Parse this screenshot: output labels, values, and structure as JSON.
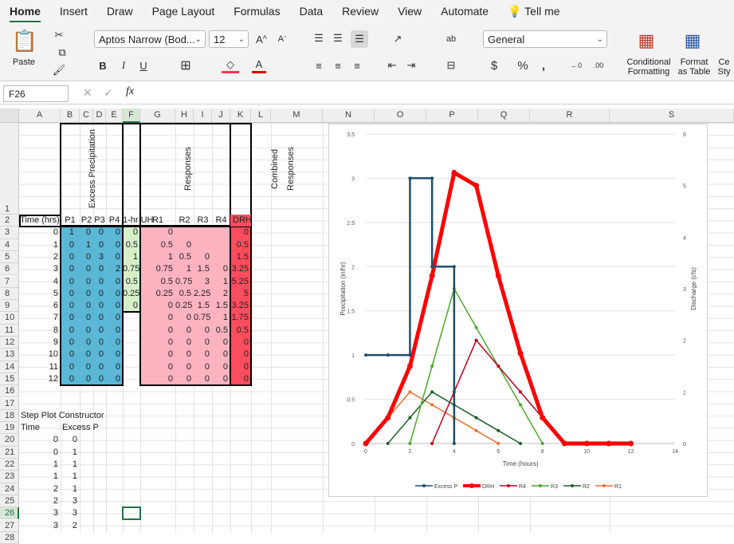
{
  "tabs": [
    "Home",
    "Insert",
    "Draw",
    "Page Layout",
    "Formulas",
    "Data",
    "Review",
    "View",
    "Automate"
  ],
  "tell_me": "Tell me",
  "ribbon": {
    "paste": "Paste",
    "font_name": "Aptos Narrow (Bod...",
    "font_size": "12",
    "number_format": "General",
    "cond_fmt": "Conditional Formatting",
    "format_table": "Format as Table",
    "cell_styles": "Ce Sty"
  },
  "formula_bar": {
    "name_box": "F26",
    "fx": "fx",
    "value": ""
  },
  "columns": [
    "A",
    "B",
    "C",
    "D",
    "E",
    "F",
    "G",
    "H",
    "I",
    "J",
    "K",
    "L",
    "M",
    "N",
    "O",
    "P",
    "Q",
    "R",
    "S"
  ],
  "rows": [
    "1",
    "2",
    "3",
    "4",
    "5",
    "6",
    "7",
    "8",
    "9",
    "10",
    "11",
    "12",
    "13",
    "14",
    "15",
    "16",
    "17",
    "18",
    "19",
    "20",
    "21",
    "22",
    "23",
    "24",
    "25",
    "26",
    "27",
    "28"
  ],
  "sheet": {
    "header_excess": "Excess Precipitation",
    "header_responses": "Responses",
    "header_combined": "Combined Responses",
    "row2": [
      "Time (hrs)",
      "P1",
      "P2",
      "P3",
      "P4",
      "1-hr UH",
      "R1",
      "R2",
      "R3",
      "R4",
      "DRH"
    ],
    "time": [
      "0",
      "1",
      "2",
      "3",
      "4",
      "5",
      "6",
      "7",
      "8",
      "9",
      "10",
      "11",
      "12"
    ],
    "p1": [
      "1",
      "0",
      "0",
      "0",
      "0",
      "0",
      "0",
      "0",
      "0",
      "0",
      "0",
      "0",
      "0"
    ],
    "p2": [
      "0",
      "1",
      "0",
      "0",
      "0",
      "0",
      "0",
      "0",
      "0",
      "0",
      "0",
      "0",
      "0"
    ],
    "p3": [
      "0",
      "0",
      "3",
      "0",
      "0",
      "0",
      "0",
      "0",
      "0",
      "0",
      "0",
      "0",
      "0"
    ],
    "p4": [
      "0",
      "0",
      "0",
      "2",
      "0",
      "0",
      "0",
      "0",
      "0",
      "0",
      "0",
      "0",
      "0"
    ],
    "uh": [
      "0",
      "0.5",
      "1",
      "0.75",
      "0.5",
      "0.25",
      "0"
    ],
    "r1": [
      "0",
      "0.5",
      "1",
      "0.75",
      "0.5",
      "0.25",
      "0",
      "0",
      "0",
      "0",
      "0",
      "0",
      "0"
    ],
    "r2": [
      "",
      "0",
      "0.5",
      "1",
      "0.75",
      "0.5",
      "0.25",
      "0",
      "0",
      "0",
      "0",
      "0",
      "0"
    ],
    "r3": [
      "",
      "",
      "0",
      "1.5",
      "3",
      "2.25",
      "1.5",
      "0.75",
      "0",
      "0",
      "0",
      "0",
      "0"
    ],
    "r4": [
      "",
      "",
      "",
      "0",
      "1",
      "2",
      "1.5",
      "1",
      "0.5",
      "0",
      "0",
      "0",
      "0"
    ],
    "drh": [
      "0",
      "0.5",
      "1.5",
      "3.25",
      "5.25",
      "5",
      "3.25",
      "1.75",
      "0.5",
      "0",
      "0",
      "0",
      "0"
    ],
    "step_title": "Step Plot Constructor",
    "step_h1": "Time",
    "step_h2": "Excess P",
    "step_time": [
      "0",
      "0",
      "1",
      "1",
      "2",
      "2",
      "3",
      "3"
    ],
    "step_p": [
      "0",
      "1",
      "1",
      "1",
      "1",
      "3",
      "3",
      "2"
    ]
  },
  "chart_data": {
    "type": "line",
    "xlabel": "Time (hours)",
    "ylabel_left": "Precipitation (in/hr)",
    "ylabel_right": "Discharge (cfs)",
    "xlim": [
      0,
      14
    ],
    "ylim_left": [
      0,
      3.5
    ],
    "ylim_right": [
      0,
      6
    ],
    "xticks": [
      "0",
      "2",
      "4",
      "6",
      "8",
      "10",
      "12",
      "14"
    ],
    "yticks_left": [
      "0",
      "0.5",
      "1",
      "1.5",
      "2",
      "2.5",
      "3",
      "3.5"
    ],
    "yticks_right": [
      "0",
      "1",
      "2",
      "3",
      "4",
      "5",
      "6"
    ],
    "legend": [
      "Excess P",
      "DRH",
      "R4",
      "R3",
      "R2",
      "R1"
    ],
    "colors": {
      "Excess P": "#1f4e6b",
      "DRH": "#ff0000",
      "R4": "#c00020",
      "R3": "#4ea72e",
      "R2": "#1e5e2a",
      "R1": "#e97132"
    },
    "excess_p": {
      "x": [
        0,
        1,
        1,
        2,
        2,
        3,
        3,
        4,
        4
      ],
      "y": [
        1,
        1,
        1,
        1,
        3,
        3,
        2,
        2,
        0
      ]
    },
    "series": [
      {
        "name": "DRH",
        "x": [
          0,
          1,
          2,
          3,
          4,
          5,
          6,
          7,
          8,
          9,
          10,
          11,
          12
        ],
        "y": [
          0,
          0.5,
          1.5,
          3.25,
          5.25,
          5,
          3.25,
          1.75,
          0.5,
          0,
          0,
          0,
          0
        ]
      },
      {
        "name": "R4",
        "x": [
          3,
          4,
          5,
          6,
          7,
          8,
          9
        ],
        "y": [
          0,
          1,
          2,
          1.5,
          1,
          0.5,
          0
        ]
      },
      {
        "name": "R3",
        "x": [
          2,
          3,
          4,
          5,
          6,
          7,
          8
        ],
        "y": [
          0,
          1.5,
          3,
          2.25,
          1.5,
          0.75,
          0
        ]
      },
      {
        "name": "R2",
        "x": [
          1,
          2,
          3,
          4,
          5,
          6,
          7
        ],
        "y": [
          0,
          0.5,
          1,
          0.75,
          0.5,
          0.25,
          0
        ]
      },
      {
        "name": "R1",
        "x": [
          0,
          1,
          2,
          3,
          4,
          5,
          6
        ],
        "y": [
          0,
          0.5,
          1,
          0.75,
          0.5,
          0.25,
          0
        ]
      }
    ]
  }
}
